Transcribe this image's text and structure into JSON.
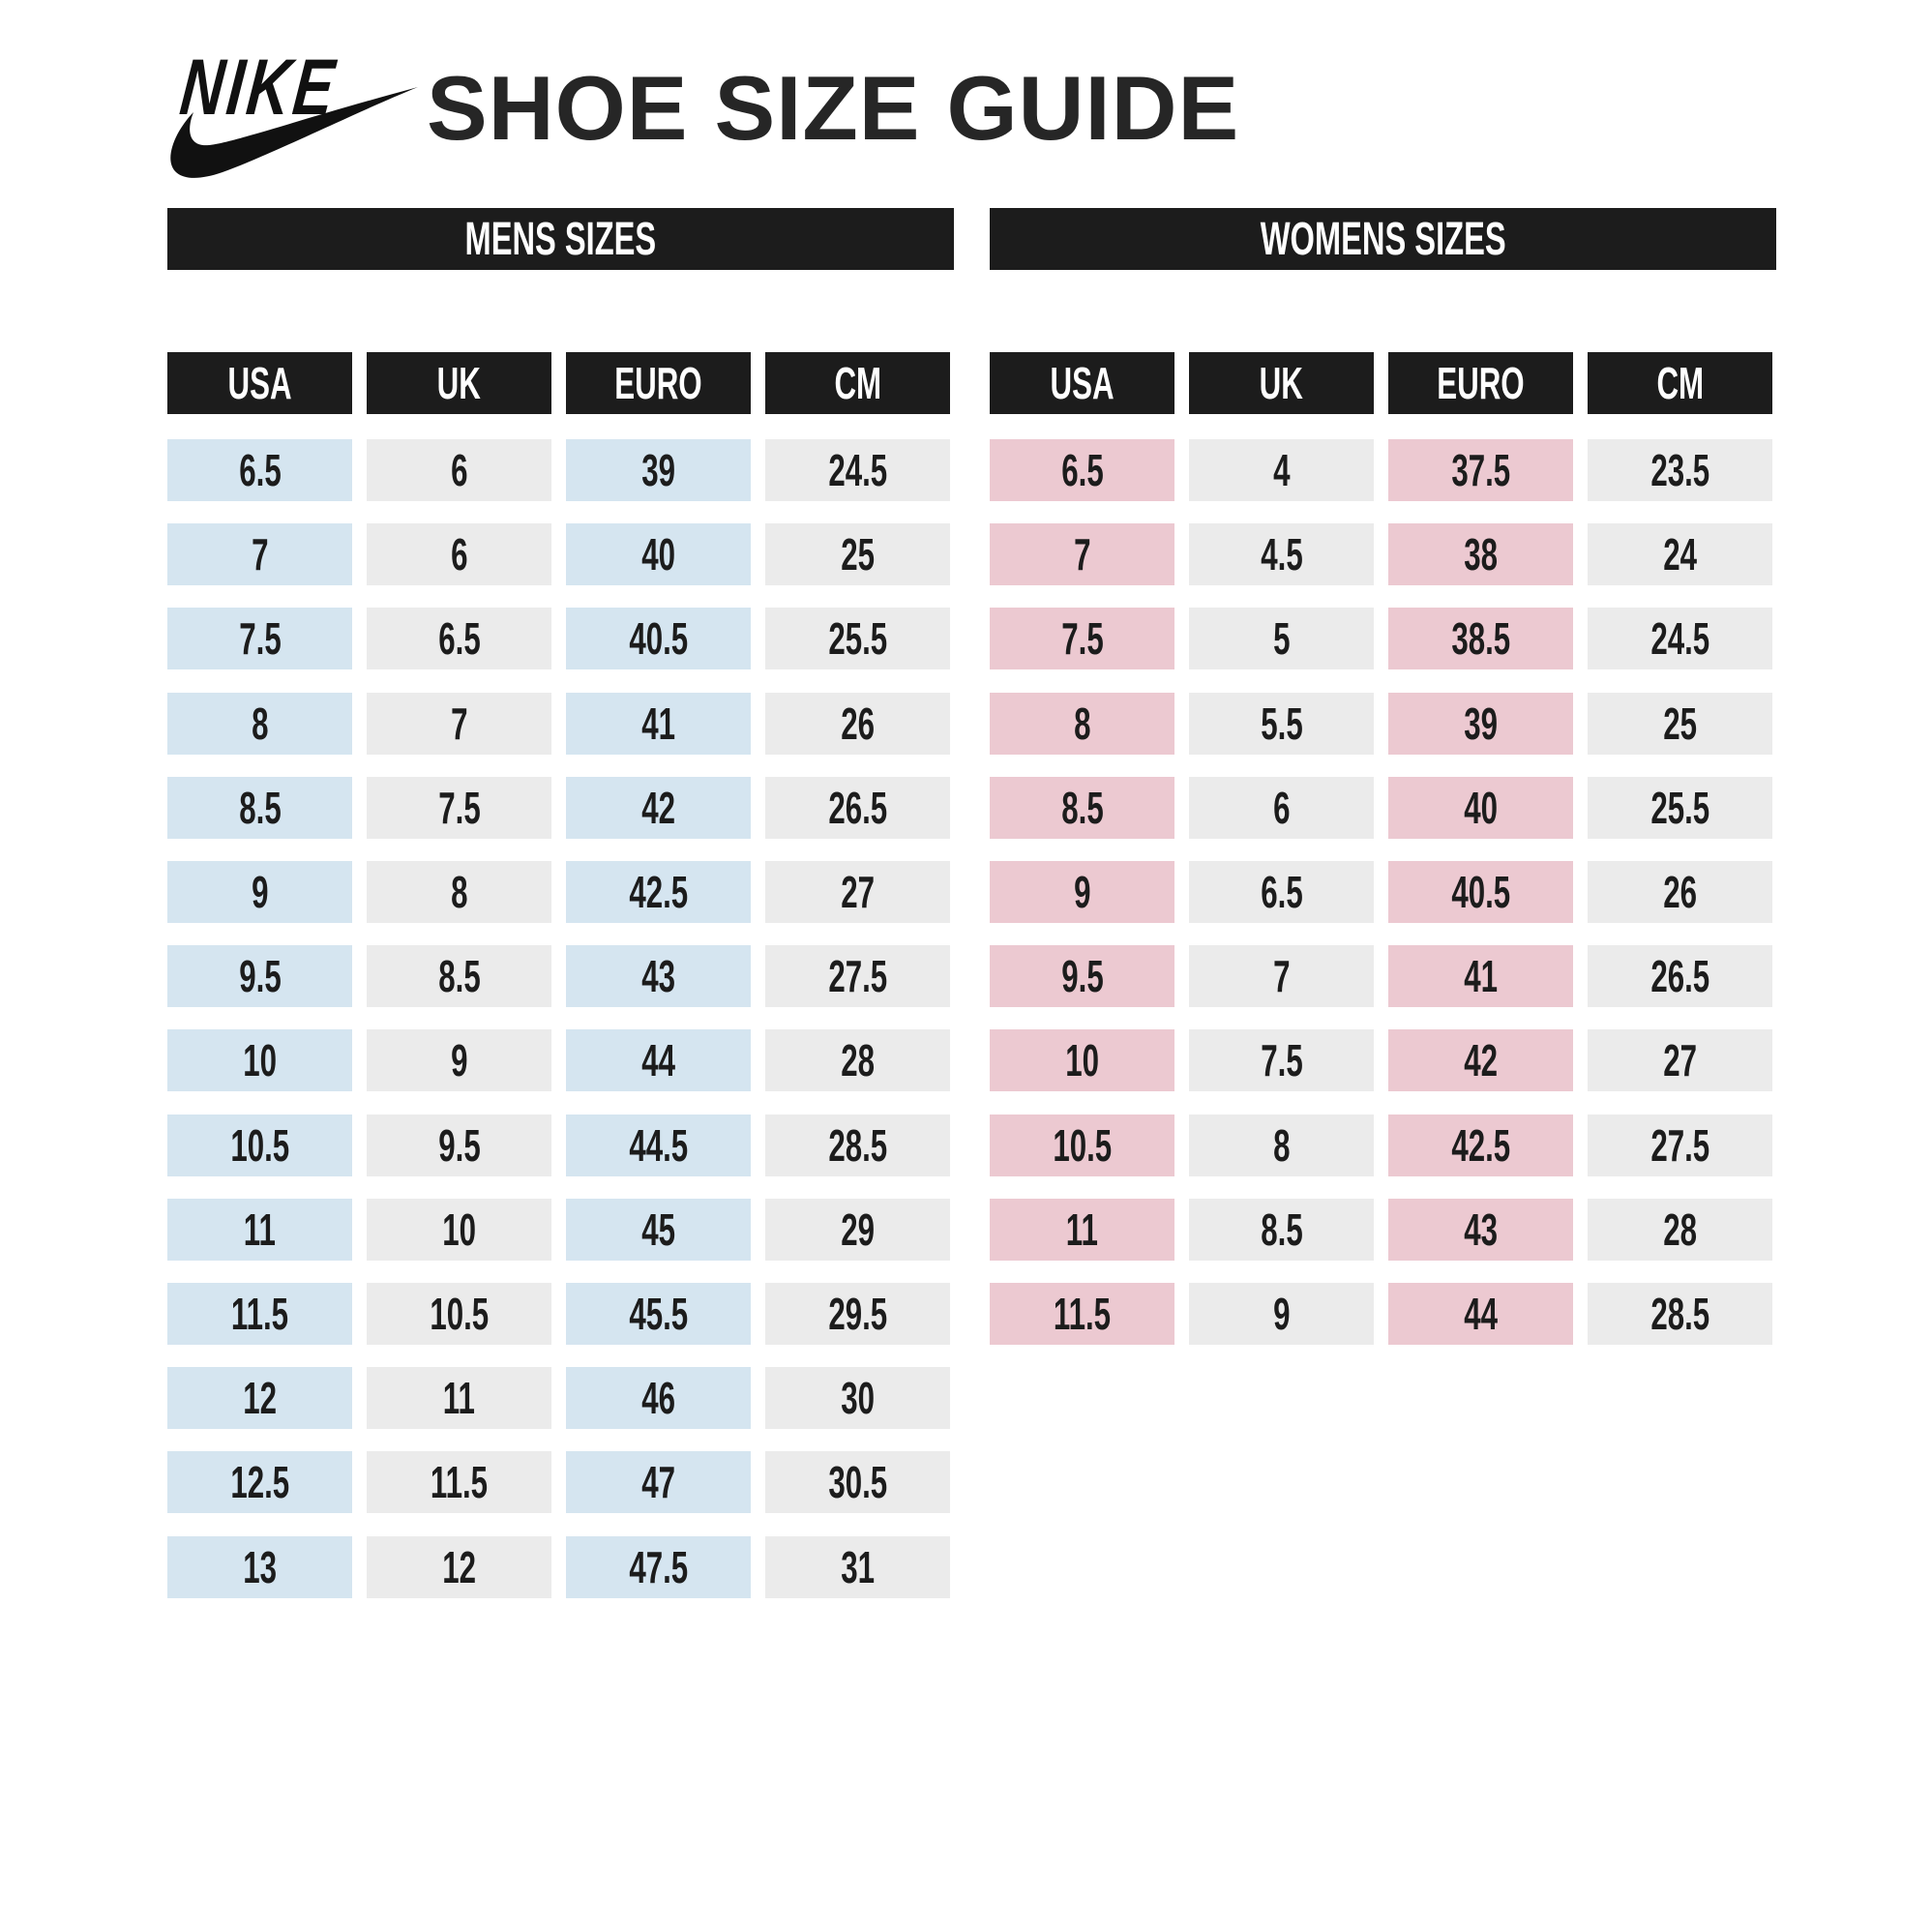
{
  "header": {
    "brand": "NIKE",
    "title": "SHOE SIZE GUIDE"
  },
  "colors": {
    "header_bg": "#1c1c1c",
    "mens_accent": "#d5e5f0",
    "womens_accent": "#ecc9d1",
    "neutral": "#ebebeb"
  },
  "mens": {
    "title": "MENS SIZES",
    "columns": [
      "USA",
      "UK",
      "EURO",
      "CM"
    ],
    "rows": [
      [
        "6.5",
        "6",
        "39",
        "24.5"
      ],
      [
        "7",
        "6",
        "40",
        "25"
      ],
      [
        "7.5",
        "6.5",
        "40.5",
        "25.5"
      ],
      [
        "8",
        "7",
        "41",
        "26"
      ],
      [
        "8.5",
        "7.5",
        "42",
        "26.5"
      ],
      [
        "9",
        "8",
        "42.5",
        "27"
      ],
      [
        "9.5",
        "8.5",
        "43",
        "27.5"
      ],
      [
        "10",
        "9",
        "44",
        "28"
      ],
      [
        "10.5",
        "9.5",
        "44.5",
        "28.5"
      ],
      [
        "11",
        "10",
        "45",
        "29"
      ],
      [
        "11.5",
        "10.5",
        "45.5",
        "29.5"
      ],
      [
        "12",
        "11",
        "46",
        "30"
      ],
      [
        "12.5",
        "11.5",
        "47",
        "30.5"
      ],
      [
        "13",
        "12",
        "47.5",
        "31"
      ]
    ]
  },
  "womens": {
    "title": "WOMENS SIZES",
    "columns": [
      "USA",
      "UK",
      "EURO",
      "CM"
    ],
    "rows": [
      [
        "6.5",
        "4",
        "37.5",
        "23.5"
      ],
      [
        "7",
        "4.5",
        "38",
        "24"
      ],
      [
        "7.5",
        "5",
        "38.5",
        "24.5"
      ],
      [
        "8",
        "5.5",
        "39",
        "25"
      ],
      [
        "8.5",
        "6",
        "40",
        "25.5"
      ],
      [
        "9",
        "6.5",
        "40.5",
        "26"
      ],
      [
        "9.5",
        "7",
        "41",
        "26.5"
      ],
      [
        "10",
        "7.5",
        "42",
        "27"
      ],
      [
        "10.5",
        "8",
        "42.5",
        "27.5"
      ],
      [
        "11",
        "8.5",
        "43",
        "28"
      ],
      [
        "11.5",
        "9",
        "44",
        "28.5"
      ]
    ]
  }
}
